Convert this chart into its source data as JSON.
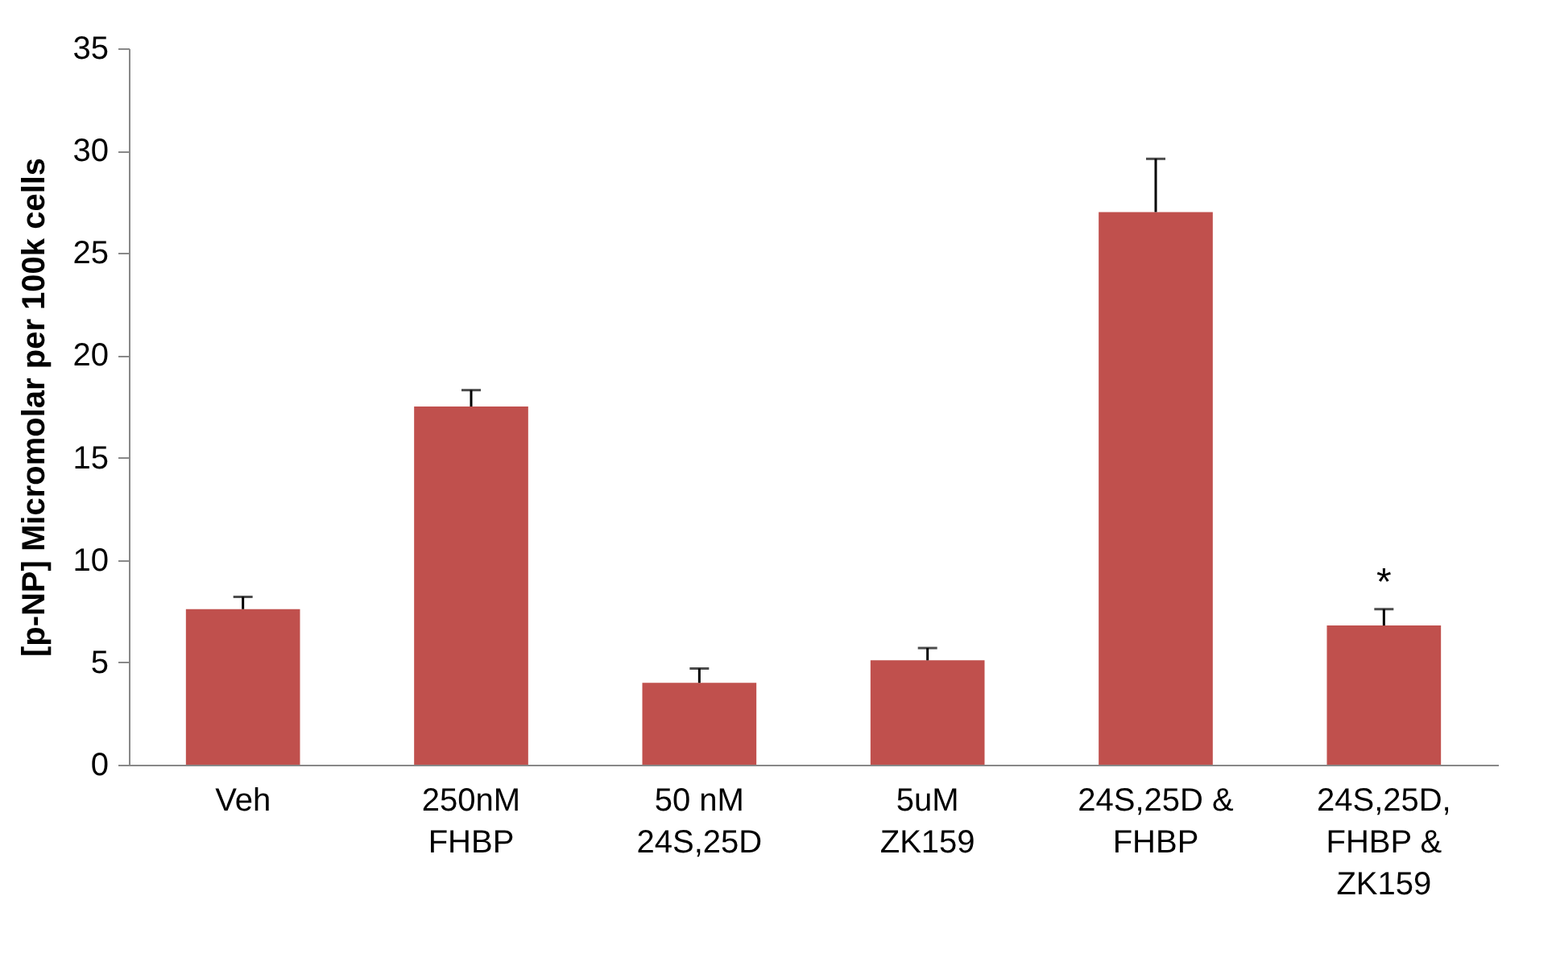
{
  "chart_data": {
    "type": "bar",
    "ylabel": "[p-NP] Micromolar per 100k cells",
    "categories": [
      "Veh",
      "250nM\nFHBP",
      "50 nM\n24S,25D",
      "5uM\nZK159",
      "24S,25D &\nFHBP",
      "24S,25D,\nFHBP &\nZK159"
    ],
    "values": [
      7.6,
      17.5,
      4.0,
      5.1,
      27.0,
      6.8
    ],
    "errors": [
      [
        7.6,
        8.2
      ],
      [
        17.5,
        18.3
      ],
      [
        4.0,
        4.7
      ],
      [
        5.1,
        5.7
      ],
      [
        27.0,
        29.6
      ],
      [
        6.8,
        7.6
      ]
    ],
    "color": "#c0504d",
    "ylim": [
      0,
      35
    ],
    "yticks": [
      0,
      5,
      10,
      15,
      20,
      25,
      30,
      35
    ],
    "grid": false,
    "annotations": [
      "*"
    ]
  }
}
